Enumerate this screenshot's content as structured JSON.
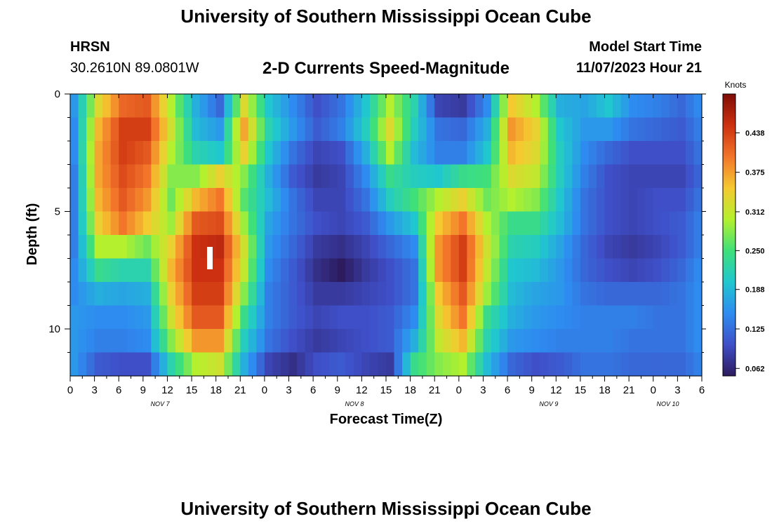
{
  "header": {
    "title": "University of Southern Mississippi Ocean Cube",
    "station": "HRSN",
    "location": "30.2610N  89.0801W",
    "plot_title": "2-D Currents Speed-Magnitude",
    "model_start_label": "Model Start Time",
    "model_start_value": "11/07/2023 Hour 21",
    "footer_title": "University of Southern Mississippi Ocean Cube"
  },
  "chart_data": {
    "type": "heatmap",
    "xlabel": "Forecast Time(Z)",
    "ylabel": "Depth (ft)",
    "x_tick_labels": [
      "0",
      "3",
      "6",
      "9",
      "12",
      "15",
      "18",
      "21",
      "0",
      "3",
      "6",
      "9",
      "12",
      "15",
      "18",
      "21",
      "0",
      "3",
      "6",
      "9",
      "12",
      "15",
      "18",
      "21",
      "0",
      "3",
      "6"
    ],
    "date_labels": [
      {
        "text": "NOV 7",
        "tick_index": 3.7
      },
      {
        "text": "NOV 8",
        "tick_index": 11.7
      },
      {
        "text": "NOV 9",
        "tick_index": 19.7
      },
      {
        "text": "NOV 10",
        "tick_index": 24.6
      }
    ],
    "y_ticks": [
      0,
      5,
      10
    ],
    "ylim": [
      0,
      12
    ],
    "colorbar": {
      "label": "Knots",
      "ticks": [
        0.438,
        0.375,
        0.312,
        0.25,
        0.188,
        0.125,
        0.062
      ],
      "tick_labels": [
        "0.438",
        "0.375",
        "0.312",
        "0.250",
        "0.188",
        "0.125",
        "0.062"
      ],
      "range": [
        0.05,
        0.5
      ],
      "colors": [
        "#2d1b5e",
        "#3f4fc8",
        "#2e8cf0",
        "#20c7cf",
        "#3fe07a",
        "#b4f02e",
        "#f5c930",
        "#f2752a",
        "#cc3010",
        "#7e0c05"
      ]
    },
    "depth_rows_ft": [
      0.5,
      1.5,
      2.5,
      3.5,
      4.5,
      5.5,
      6.5,
      7.5,
      8.5,
      9.5,
      10.5,
      11.5
    ],
    "time_hours": [
      0,
      3,
      6,
      9,
      12,
      15,
      18,
      21,
      24,
      27,
      30,
      33,
      36,
      39,
      42,
      45,
      48,
      51,
      54,
      57,
      60,
      63,
      66,
      69,
      72,
      75,
      78
    ],
    "speed_knots_by_depth": [
      [
        0.16,
        0.33,
        0.41,
        0.42,
        0.3,
        0.18,
        0.12,
        0.33,
        0.2,
        0.15,
        0.1,
        0.13,
        0.2,
        0.3,
        0.22,
        0.09,
        0.08,
        0.15,
        0.35,
        0.3,
        0.18,
        0.17,
        0.2,
        0.15,
        0.14,
        0.12,
        0.16
      ],
      [
        0.15,
        0.36,
        0.44,
        0.44,
        0.32,
        0.19,
        0.16,
        0.37,
        0.22,
        0.16,
        0.11,
        0.14,
        0.21,
        0.33,
        0.21,
        0.13,
        0.12,
        0.18,
        0.38,
        0.34,
        0.2,
        0.16,
        0.16,
        0.13,
        0.12,
        0.11,
        0.15
      ],
      [
        0.15,
        0.37,
        0.44,
        0.42,
        0.3,
        0.22,
        0.2,
        0.34,
        0.2,
        0.13,
        0.09,
        0.1,
        0.18,
        0.3,
        0.19,
        0.14,
        0.14,
        0.2,
        0.36,
        0.33,
        0.21,
        0.15,
        0.12,
        0.1,
        0.1,
        0.1,
        0.14
      ],
      [
        0.14,
        0.37,
        0.43,
        0.4,
        0.28,
        0.28,
        0.34,
        0.28,
        0.18,
        0.11,
        0.08,
        0.09,
        0.15,
        0.24,
        0.21,
        0.2,
        0.24,
        0.25,
        0.33,
        0.31,
        0.21,
        0.14,
        0.1,
        0.09,
        0.09,
        0.09,
        0.13
      ],
      [
        0.14,
        0.36,
        0.42,
        0.38,
        0.27,
        0.36,
        0.4,
        0.26,
        0.19,
        0.13,
        0.09,
        0.09,
        0.13,
        0.21,
        0.25,
        0.3,
        0.34,
        0.27,
        0.3,
        0.28,
        0.2,
        0.13,
        0.1,
        0.09,
        0.1,
        0.1,
        0.14
      ],
      [
        0.14,
        0.34,
        0.4,
        0.35,
        0.29,
        0.42,
        0.43,
        0.29,
        0.17,
        0.13,
        0.1,
        0.09,
        0.11,
        0.16,
        0.2,
        0.35,
        0.4,
        0.3,
        0.24,
        0.24,
        0.19,
        0.13,
        0.1,
        0.09,
        0.1,
        0.11,
        0.15
      ],
      [
        0.14,
        0.3,
        0.3,
        0.27,
        0.34,
        0.45,
        0.46,
        0.32,
        0.16,
        0.12,
        0.08,
        0.07,
        0.09,
        0.12,
        0.15,
        0.38,
        0.44,
        0.32,
        0.22,
        0.21,
        0.17,
        0.12,
        0.09,
        0.08,
        0.09,
        0.11,
        0.15
      ],
      [
        0.15,
        0.24,
        0.22,
        0.22,
        0.36,
        0.45,
        0.45,
        0.31,
        0.15,
        0.11,
        0.07,
        0.05,
        0.08,
        0.1,
        0.13,
        0.38,
        0.44,
        0.31,
        0.2,
        0.19,
        0.16,
        0.12,
        0.1,
        0.09,
        0.1,
        0.12,
        0.16
      ],
      [
        0.15,
        0.18,
        0.17,
        0.18,
        0.34,
        0.44,
        0.44,
        0.28,
        0.14,
        0.11,
        0.08,
        0.08,
        0.09,
        0.1,
        0.13,
        0.35,
        0.42,
        0.29,
        0.19,
        0.17,
        0.16,
        0.13,
        0.12,
        0.12,
        0.12,
        0.13,
        0.16
      ],
      [
        0.16,
        0.15,
        0.15,
        0.16,
        0.32,
        0.42,
        0.42,
        0.24,
        0.14,
        0.11,
        0.09,
        0.1,
        0.1,
        0.11,
        0.15,
        0.33,
        0.4,
        0.24,
        0.18,
        0.16,
        0.15,
        0.14,
        0.14,
        0.14,
        0.13,
        0.13,
        0.16
      ],
      [
        0.16,
        0.14,
        0.14,
        0.15,
        0.28,
        0.38,
        0.38,
        0.21,
        0.13,
        0.1,
        0.08,
        0.09,
        0.1,
        0.11,
        0.18,
        0.31,
        0.36,
        0.22,
        0.16,
        0.15,
        0.14,
        0.14,
        0.14,
        0.13,
        0.13,
        0.13,
        0.16
      ],
      [
        0.16,
        0.11,
        0.1,
        0.1,
        0.22,
        0.3,
        0.32,
        0.18,
        0.09,
        0.07,
        0.1,
        0.11,
        0.09,
        0.08,
        0.24,
        0.28,
        0.3,
        0.19,
        0.12,
        0.1,
        0.11,
        0.13,
        0.13,
        0.12,
        0.12,
        0.12,
        0.15
      ]
    ]
  }
}
